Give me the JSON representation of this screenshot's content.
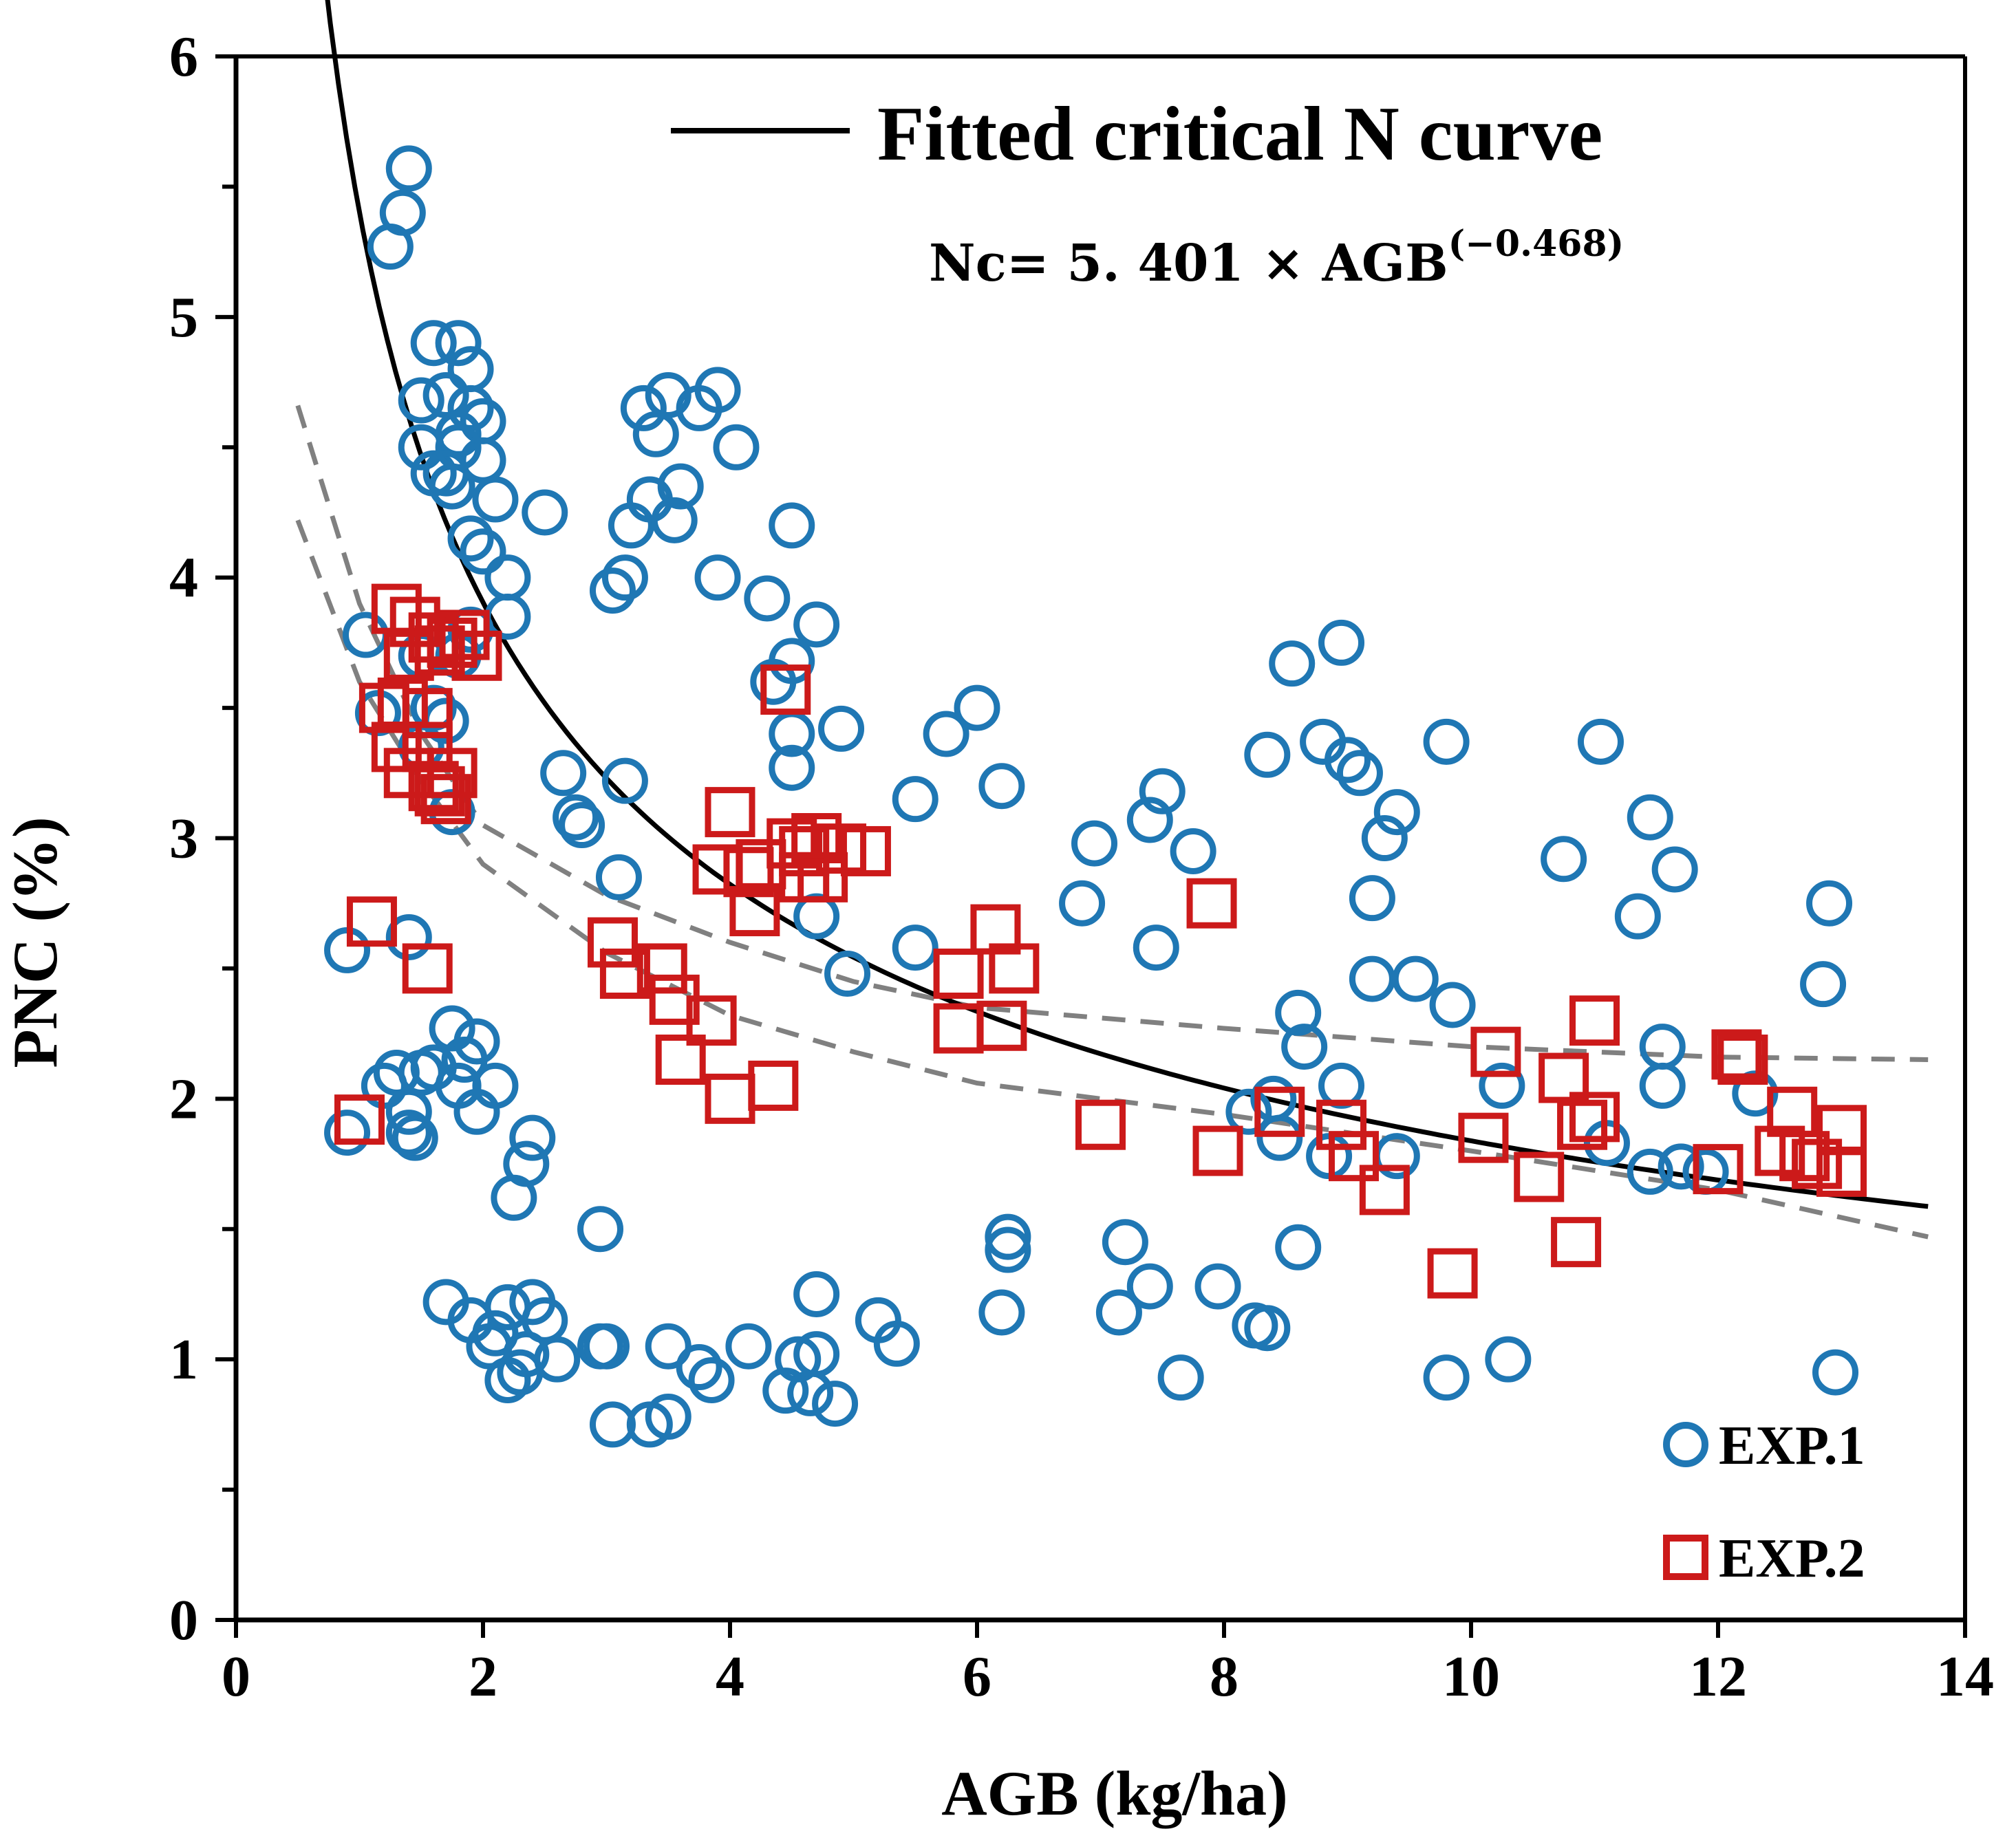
{
  "chart_data": {
    "type": "scatter",
    "title": "",
    "xlabel": "AGB (kg/ha)",
    "ylabel": "PNC (%)",
    "xlim": [
      0,
      14
    ],
    "ylim": [
      0,
      6
    ],
    "x_ticks": [
      "0",
      "2",
      "4",
      "6",
      "8",
      "10",
      "12",
      "14"
    ],
    "y_ticks": [
      "0",
      "1",
      "2",
      "3",
      "4",
      "5",
      "6"
    ],
    "grid": false,
    "curve_legend_label": "Fitted critical N curve",
    "equation": {
      "main": "Nc= 5. 401 × AGB",
      "exponent": "(−0.468)"
    },
    "fitted_curve": {
      "a": 5.401,
      "b": -0.468,
      "x_range": [
        0.5,
        13.7
      ],
      "upper_band": [
        [
          0.5,
          4.66
        ],
        [
          1,
          3.9
        ],
        [
          1.5,
          3.4
        ],
        [
          2,
          3.05
        ],
        [
          3,
          2.78
        ],
        [
          4,
          2.6
        ],
        [
          5,
          2.45
        ],
        [
          6,
          2.35
        ],
        [
          8,
          2.27
        ],
        [
          10,
          2.2
        ],
        [
          12,
          2.16
        ],
        [
          13.7,
          2.15
        ]
      ],
      "lower_band": [
        [
          0.5,
          4.22
        ],
        [
          1,
          3.6
        ],
        [
          1.5,
          3.22
        ],
        [
          2,
          2.9
        ],
        [
          3,
          2.56
        ],
        [
          4,
          2.32
        ],
        [
          5,
          2.18
        ],
        [
          6,
          2.06
        ],
        [
          8,
          1.94
        ],
        [
          10,
          1.8
        ],
        [
          12,
          1.65
        ],
        [
          13.7,
          1.47
        ]
      ]
    },
    "colors": {
      "exp1": "#1f77b4",
      "exp2": "#cc1a1a",
      "curve": "#000000",
      "band": "#808080"
    },
    "series": [
      {
        "name": "EXP.1",
        "marker": "circle",
        "points": [
          [
            1.4,
            5.57
          ],
          [
            1.35,
            5.4
          ],
          [
            1.25,
            5.27
          ],
          [
            1.6,
            4.9
          ],
          [
            1.8,
            4.9
          ],
          [
            1.9,
            4.8
          ],
          [
            1.5,
            4.68
          ],
          [
            1.7,
            4.7
          ],
          [
            1.9,
            4.65
          ],
          [
            1.5,
            4.5
          ],
          [
            1.8,
            4.55
          ],
          [
            2.0,
            4.6
          ],
          [
            1.6,
            4.4
          ],
          [
            1.75,
            4.35
          ],
          [
            2.0,
            4.45
          ],
          [
            1.7,
            4.4
          ],
          [
            1.8,
            4.5
          ],
          [
            2.1,
            4.3
          ],
          [
            1.9,
            4.15
          ],
          [
            2.0,
            4.1
          ],
          [
            2.5,
            4.25
          ],
          [
            2.2,
            4.0
          ],
          [
            2.2,
            3.85
          ],
          [
            1.9,
            3.8
          ],
          [
            1.05,
            3.78
          ],
          [
            1.5,
            3.7
          ],
          [
            1.8,
            3.7
          ],
          [
            1.15,
            3.48
          ],
          [
            1.6,
            3.5
          ],
          [
            1.7,
            3.45
          ],
          [
            1.5,
            3.35
          ],
          [
            1.75,
            3.1
          ],
          [
            3.3,
            4.65
          ],
          [
            3.5,
            4.7
          ],
          [
            3.75,
            4.65
          ],
          [
            3.9,
            4.72
          ],
          [
            4.05,
            4.5
          ],
          [
            3.4,
            4.55
          ],
          [
            3.2,
            4.2
          ],
          [
            3.35,
            4.3
          ],
          [
            3.6,
            4.35
          ],
          [
            3.55,
            4.22
          ],
          [
            3.05,
            3.95
          ],
          [
            3.15,
            4.0
          ],
          [
            3.9,
            4.0
          ],
          [
            4.3,
            3.92
          ],
          [
            4.5,
            4.2
          ],
          [
            4.7,
            3.82
          ],
          [
            4.5,
            3.68
          ],
          [
            4.35,
            3.6
          ],
          [
            4.5,
            3.4
          ],
          [
            4.5,
            3.27
          ],
          [
            4.9,
            3.42
          ],
          [
            2.65,
            3.25
          ],
          [
            2.75,
            3.08
          ],
          [
            2.8,
            3.05
          ],
          [
            3.15,
            3.22
          ],
          [
            3.1,
            2.85
          ],
          [
            4.7,
            2.7
          ],
          [
            4.95,
            2.48
          ],
          [
            5.5,
            3.15
          ],
          [
            5.75,
            3.4
          ],
          [
            6.0,
            3.5
          ],
          [
            6.2,
            3.2
          ],
          [
            5.5,
            2.58
          ],
          [
            6.95,
            2.98
          ],
          [
            6.85,
            2.75
          ],
          [
            7.5,
            3.18
          ],
          [
            7.4,
            3.07
          ],
          [
            7.75,
            2.95
          ],
          [
            7.45,
            2.58
          ],
          [
            8.35,
            3.32
          ],
          [
            8.55,
            3.67
          ],
          [
            8.95,
            3.75
          ],
          [
            8.8,
            3.37
          ],
          [
            9.0,
            3.3
          ],
          [
            9.1,
            3.25
          ],
          [
            9.3,
            3.0
          ],
          [
            9.4,
            3.1
          ],
          [
            9.8,
            3.37
          ],
          [
            9.2,
            2.77
          ],
          [
            9.2,
            2.46
          ],
          [
            9.55,
            2.46
          ],
          [
            9.85,
            2.36
          ],
          [
            8.6,
            2.33
          ],
          [
            8.65,
            2.2
          ],
          [
            8.95,
            2.05
          ],
          [
            10.25,
            2.05
          ],
          [
            8.2,
            1.95
          ],
          [
            8.4,
            2.0
          ],
          [
            8.45,
            1.85
          ],
          [
            8.85,
            1.78
          ],
          [
            9.4,
            1.78
          ],
          [
            10.75,
            2.92
          ],
          [
            11.05,
            3.37
          ],
          [
            11.45,
            3.08
          ],
          [
            11.35,
            2.7
          ],
          [
            11.65,
            2.88
          ],
          [
            11.55,
            2.2
          ],
          [
            11.55,
            2.05
          ],
          [
            11.1,
            1.83
          ],
          [
            11.45,
            1.72
          ],
          [
            11.7,
            1.74
          ],
          [
            11.9,
            1.72
          ],
          [
            12.3,
            2.02
          ],
          [
            12.9,
            2.75
          ],
          [
            12.85,
            2.44
          ],
          [
            0.9,
            2.57
          ],
          [
            1.4,
            2.62
          ],
          [
            0.9,
            1.87
          ],
          [
            1.2,
            2.05
          ],
          [
            1.3,
            2.1
          ],
          [
            1.4,
            1.95
          ],
          [
            1.5,
            2.1
          ],
          [
            1.6,
            2.12
          ],
          [
            1.45,
            1.85
          ],
          [
            1.4,
            1.87
          ],
          [
            1.75,
            2.27
          ],
          [
            1.85,
            2.15
          ],
          [
            1.95,
            2.22
          ],
          [
            1.8,
            2.05
          ],
          [
            1.95,
            1.95
          ],
          [
            2.1,
            2.05
          ],
          [
            2.25,
            1.62
          ],
          [
            2.35,
            1.75
          ],
          [
            2.4,
            1.85
          ],
          [
            2.95,
            1.5
          ],
          [
            1.7,
            1.22
          ],
          [
            1.9,
            1.15
          ],
          [
            2.05,
            1.05
          ],
          [
            2.1,
            1.1
          ],
          [
            2.2,
            1.2
          ],
          [
            2.2,
            0.92
          ],
          [
            2.3,
            0.95
          ],
          [
            2.35,
            1.02
          ],
          [
            2.4,
            1.22
          ],
          [
            2.5,
            1.15
          ],
          [
            2.6,
            1.0
          ],
          [
            2.95,
            1.05
          ],
          [
            3.0,
            1.05
          ],
          [
            3.05,
            0.75
          ],
          [
            3.35,
            0.75
          ],
          [
            3.5,
            0.78
          ],
          [
            3.5,
            1.05
          ],
          [
            3.75,
            0.97
          ],
          [
            3.85,
            0.92
          ],
          [
            4.15,
            1.05
          ],
          [
            4.45,
            0.88
          ],
          [
            4.55,
            1.0
          ],
          [
            4.65,
            0.87
          ],
          [
            4.7,
            1.25
          ],
          [
            4.7,
            1.02
          ],
          [
            4.85,
            0.83
          ],
          [
            5.2,
            1.15
          ],
          [
            5.35,
            1.06
          ],
          [
            6.25,
            1.47
          ],
          [
            6.25,
            1.42
          ],
          [
            6.2,
            1.18
          ],
          [
            7.2,
            1.45
          ],
          [
            7.15,
            1.18
          ],
          [
            7.4,
            1.28
          ],
          [
            7.65,
            0.93
          ],
          [
            7.95,
            1.28
          ],
          [
            8.25,
            1.13
          ],
          [
            8.35,
            1.12
          ],
          [
            8.6,
            1.43
          ],
          [
            9.8,
            0.93
          ],
          [
            10.3,
            1.0
          ],
          [
            12.95,
            0.95
          ]
        ]
      },
      {
        "name": "EXP.2",
        "marker": "square",
        "points": [
          [
            1.3,
            3.88
          ],
          [
            1.45,
            3.83
          ],
          [
            1.6,
            3.77
          ],
          [
            1.75,
            3.75
          ],
          [
            1.85,
            3.78
          ],
          [
            1.4,
            3.7
          ],
          [
            1.65,
            3.72
          ],
          [
            1.95,
            3.7
          ],
          [
            1.2,
            3.5
          ],
          [
            1.35,
            3.52
          ],
          [
            1.55,
            3.48
          ],
          [
            1.3,
            3.35
          ],
          [
            1.55,
            3.35
          ],
          [
            1.4,
            3.25
          ],
          [
            1.6,
            3.2
          ],
          [
            1.75,
            3.25
          ],
          [
            1.65,
            3.18
          ],
          [
            1.7,
            3.15
          ],
          [
            4.45,
            3.57
          ],
          [
            4.0,
            3.1
          ],
          [
            4.15,
            2.87
          ],
          [
            4.25,
            2.9
          ],
          [
            4.5,
            2.98
          ],
          [
            4.6,
            2.95
          ],
          [
            4.7,
            3.0
          ],
          [
            4.9,
            2.96
          ],
          [
            5.1,
            2.95
          ],
          [
            3.9,
            2.88
          ],
          [
            4.2,
            2.72
          ],
          [
            4.6,
            2.85
          ],
          [
            4.75,
            2.85
          ],
          [
            3.05,
            2.6
          ],
          [
            3.15,
            2.48
          ],
          [
            3.45,
            2.5
          ],
          [
            3.55,
            2.38
          ],
          [
            3.6,
            2.15
          ],
          [
            3.85,
            2.3
          ],
          [
            4.0,
            2.0
          ],
          [
            4.35,
            2.05
          ],
          [
            1.1,
            2.68
          ],
          [
            1.55,
            2.5
          ],
          [
            1.0,
            1.92
          ],
          [
            5.85,
            2.48
          ],
          [
            5.85,
            2.27
          ],
          [
            6.15,
            2.65
          ],
          [
            6.3,
            2.5
          ],
          [
            6.2,
            2.28
          ],
          [
            7.9,
            2.75
          ],
          [
            7.0,
            1.9
          ],
          [
            7.95,
            1.8
          ],
          [
            8.45,
            1.95
          ],
          [
            8.95,
            1.9
          ],
          [
            9.05,
            1.78
          ],
          [
            9.3,
            1.65
          ],
          [
            9.85,
            1.33
          ],
          [
            10.1,
            1.85
          ],
          [
            10.2,
            2.18
          ],
          [
            10.55,
            1.7
          ],
          [
            10.75,
            2.08
          ],
          [
            10.9,
            1.9
          ],
          [
            11.0,
            1.93
          ],
          [
            11.0,
            2.3
          ],
          [
            10.85,
            1.45
          ],
          [
            12.15,
            2.17
          ],
          [
            12.2,
            2.15
          ],
          [
            12.0,
            1.73
          ],
          [
            12.5,
            1.8
          ],
          [
            12.6,
            1.95
          ],
          [
            12.7,
            1.78
          ],
          [
            12.8,
            1.75
          ],
          [
            13.0,
            1.88
          ],
          [
            13.0,
            1.72
          ]
        ]
      }
    ]
  }
}
